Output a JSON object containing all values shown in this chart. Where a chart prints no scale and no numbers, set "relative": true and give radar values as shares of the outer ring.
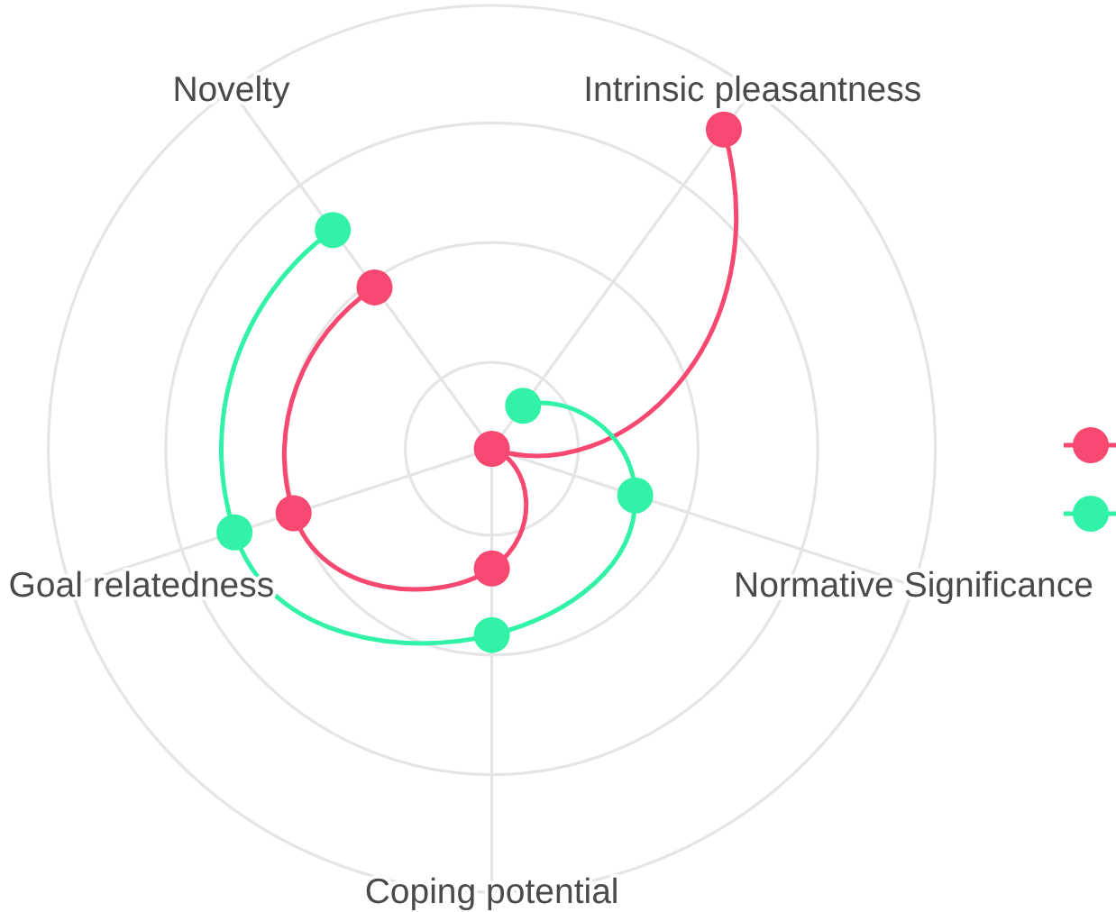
{
  "chart_data": {
    "type": "radar",
    "categories": [
      "Intrinsic pleasantness",
      "Normative Significance",
      "Coping potential",
      "Goal relatedness",
      "Novelty"
    ],
    "relative": true,
    "series": [
      {
        "color": "#f64870",
        "values": [
          0.89,
          0,
          0.27,
          0.47,
          0.45
        ]
      },
      {
        "color": "#31f2a6",
        "values": [
          0.12,
          0.34,
          0.42,
          0.61,
          0.61
        ]
      }
    ],
    "grid": true,
    "marker": "circle"
  }
}
